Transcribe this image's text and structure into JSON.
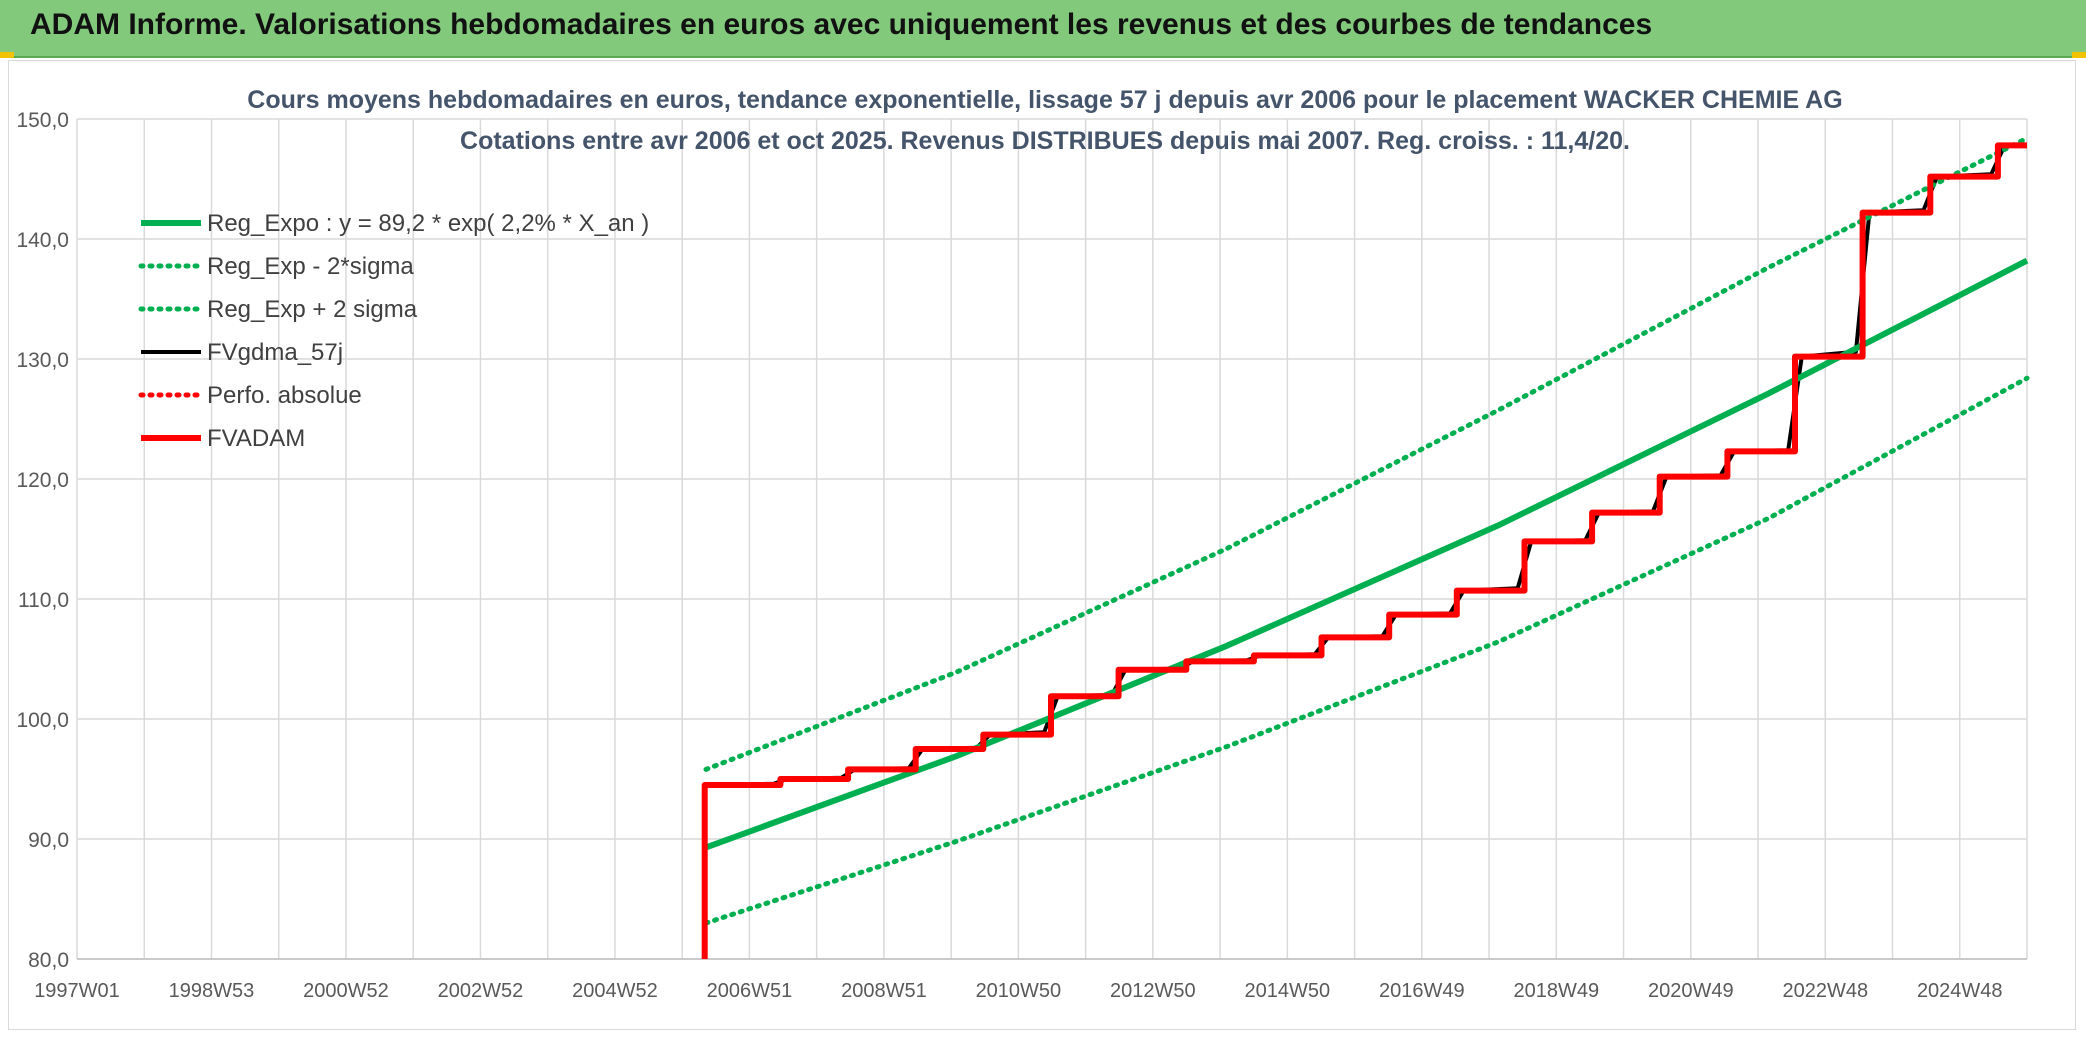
{
  "header": {
    "title": "ADAM Informe. Valorisations hebdomadaires en euros avec uniquement les revenus et des courbes de tendances"
  },
  "colors": {
    "banner": "#82c97c",
    "green": "#00b050",
    "red": "#ff0000",
    "black": "#000000",
    "grid": "#d9d9d9"
  },
  "chart_data": {
    "type": "line",
    "title": "Cours moyens hebdomadaires en euros, tendance exponentielle, lissage 57 j depuis avr 2006 pour le placement WACKER CHEMIE AG",
    "subtitle": "Cotations entre avr 2006 et oct 2025. Revenus DISTRIBUES depuis mai 2007. Reg. croiss. : 11,4/20.",
    "xlabel": "",
    "ylabel": "",
    "x_ticks": [
      "1997W01",
      "1998W53",
      "2000W52",
      "2002W52",
      "2004W52",
      "2006W51",
      "2008W51",
      "2010W50",
      "2012W50",
      "2014W50",
      "2016W49",
      "2018W49",
      "2020W49",
      "2022W48",
      "2024W48"
    ],
    "x_range": [
      1997.0,
      2025.83
    ],
    "y_ticks": [
      "80,0",
      "90,0",
      "100,0",
      "110,0",
      "120,0",
      "130,0",
      "140,0",
      "150,0"
    ],
    "ylim": [
      80,
      150
    ],
    "grid": true,
    "legend_position": "top-left",
    "series": [
      {
        "name": "Reg_Expo : y = 89,2 * exp( 2,2% *  X_an )",
        "style": "solid-thick",
        "color": "#00b050",
        "points": [
          [
            2006.3,
            89.3
          ],
          [
            2010.0,
            96.9
          ],
          [
            2014.0,
            106.1
          ],
          [
            2018.0,
            116.1
          ],
          [
            2022.0,
            127.1
          ],
          [
            2025.83,
            138.2
          ]
        ]
      },
      {
        "name": "Reg_Exp - 2*sigma",
        "style": "dotted",
        "color": "#00b050",
        "points": [
          [
            2006.3,
            83.0
          ],
          [
            2010.0,
            89.8
          ],
          [
            2014.0,
            97.7
          ],
          [
            2018.0,
            106.4
          ],
          [
            2022.0,
            116.7
          ],
          [
            2025.83,
            128.4
          ]
        ]
      },
      {
        "name": "Reg_Exp + 2 sigma",
        "style": "dotted",
        "color": "#00b050",
        "points": [
          [
            2006.3,
            95.8
          ],
          [
            2010.0,
            103.9
          ],
          [
            2014.0,
            114.2
          ],
          [
            2018.0,
            125.7
          ],
          [
            2022.0,
            137.6
          ],
          [
            2025.83,
            148.4
          ]
        ]
      },
      {
        "name": "FVgdma_57j",
        "style": "solid",
        "color": "#000000",
        "points": [
          [
            2006.3,
            94.5
          ],
          [
            2007.3,
            94.6
          ],
          [
            2007.5,
            95.0
          ],
          [
            2008.3,
            95.1
          ],
          [
            2008.5,
            95.8
          ],
          [
            2009.3,
            95.9
          ],
          [
            2009.5,
            97.5
          ],
          [
            2010.3,
            97.6
          ],
          [
            2010.5,
            98.7
          ],
          [
            2011.3,
            98.9
          ],
          [
            2011.5,
            101.9
          ],
          [
            2012.3,
            102.0
          ],
          [
            2012.5,
            104.1
          ],
          [
            2013.3,
            104.2
          ],
          [
            2013.5,
            104.8
          ],
          [
            2014.3,
            104.9
          ],
          [
            2014.5,
            105.3
          ],
          [
            2015.3,
            105.4
          ],
          [
            2015.5,
            106.8
          ],
          [
            2016.3,
            106.9
          ],
          [
            2016.5,
            108.7
          ],
          [
            2017.3,
            108.8
          ],
          [
            2017.5,
            110.7
          ],
          [
            2018.3,
            110.9
          ],
          [
            2018.5,
            114.8
          ],
          [
            2019.3,
            114.9
          ],
          [
            2019.5,
            117.2
          ],
          [
            2020.3,
            117.3
          ],
          [
            2020.5,
            120.2
          ],
          [
            2021.3,
            120.3
          ],
          [
            2021.5,
            122.3
          ],
          [
            2022.3,
            122.4
          ],
          [
            2022.5,
            130.2
          ],
          [
            2023.3,
            130.6
          ],
          [
            2023.5,
            142.2
          ],
          [
            2024.3,
            142.4
          ],
          [
            2024.5,
            145.2
          ],
          [
            2025.3,
            145.4
          ],
          [
            2025.5,
            147.8
          ],
          [
            2025.83,
            147.8
          ]
        ]
      },
      {
        "name": "Perfo. absolue",
        "style": "dotted",
        "color": "#ff0000",
        "points": []
      },
      {
        "name": "FVADAM",
        "style": "solid-thick",
        "color": "#ff0000",
        "points": [
          [
            2006.28,
            80.0
          ],
          [
            2006.28,
            94.5
          ],
          [
            2007.4,
            94.5
          ],
          [
            2007.4,
            95.0
          ],
          [
            2008.4,
            95.0
          ],
          [
            2008.4,
            95.8
          ],
          [
            2009.4,
            95.8
          ],
          [
            2009.4,
            97.5
          ],
          [
            2010.4,
            97.5
          ],
          [
            2010.4,
            98.7
          ],
          [
            2011.4,
            98.7
          ],
          [
            2011.4,
            101.9
          ],
          [
            2012.4,
            101.9
          ],
          [
            2012.4,
            104.1
          ],
          [
            2013.4,
            104.1
          ],
          [
            2013.4,
            104.8
          ],
          [
            2014.4,
            104.8
          ],
          [
            2014.4,
            105.3
          ],
          [
            2015.4,
            105.3
          ],
          [
            2015.4,
            106.8
          ],
          [
            2016.4,
            106.8
          ],
          [
            2016.4,
            108.7
          ],
          [
            2017.4,
            108.7
          ],
          [
            2017.4,
            110.7
          ],
          [
            2018.4,
            110.7
          ],
          [
            2018.4,
            114.8
          ],
          [
            2019.4,
            114.8
          ],
          [
            2019.4,
            117.2
          ],
          [
            2020.4,
            117.2
          ],
          [
            2020.4,
            120.2
          ],
          [
            2021.4,
            120.2
          ],
          [
            2021.4,
            122.3
          ],
          [
            2022.4,
            122.3
          ],
          [
            2022.4,
            130.2
          ],
          [
            2023.4,
            130.2
          ],
          [
            2023.4,
            142.2
          ],
          [
            2024.4,
            142.2
          ],
          [
            2024.4,
            145.2
          ],
          [
            2025.4,
            145.2
          ],
          [
            2025.4,
            147.8
          ],
          [
            2025.83,
            147.8
          ]
        ]
      }
    ]
  }
}
